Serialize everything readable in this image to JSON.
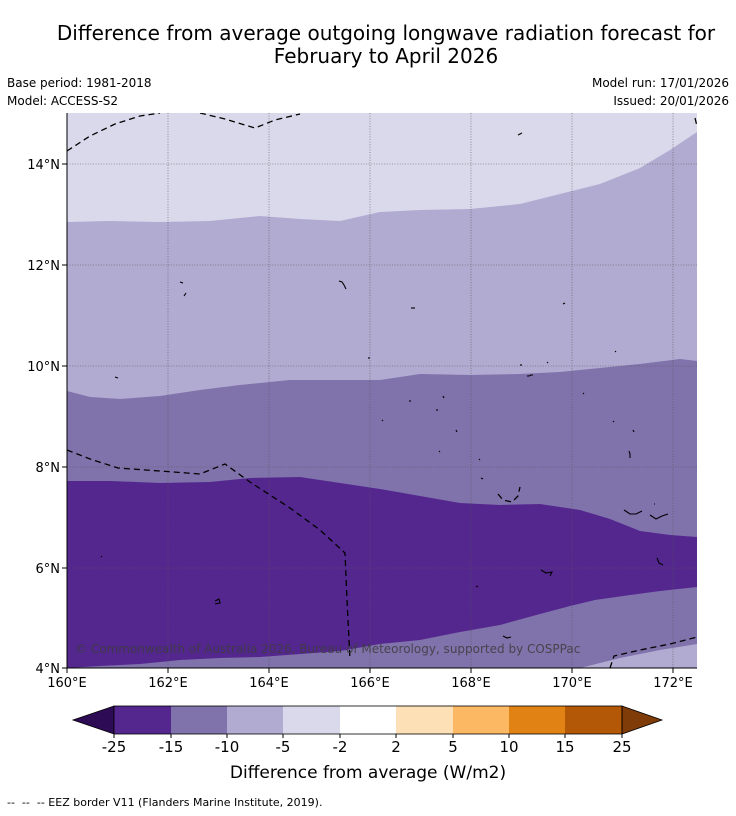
{
  "header": {
    "title_line1": "Difference from average outgoing longwave radiation forecast for",
    "title_line2": "February to April 2026",
    "base_period": "Base period: 1981-2018",
    "model": "Model: ACCESS-S2",
    "model_run": "Model run: 17/01/2026",
    "issued": "Issued: 20/01/2026"
  },
  "map": {
    "lon_labels": [
      "160°E",
      "162°E",
      "164°E",
      "166°E",
      "168°E",
      "170°E",
      "172°E"
    ],
    "lat_labels": [
      "14°N",
      "12°N",
      "10°N",
      "8°N",
      "6°N",
      "4°N"
    ],
    "copyright": "© Commonwealth of Australia 2026, Bureau of Meteorology, supported by COSPPac"
  },
  "legend": {
    "ticks": [
      "-25",
      "-15",
      "-10",
      "-5",
      "-2",
      "2",
      "5",
      "10",
      "15",
      "25"
    ],
    "colors": [
      "#2d0b55",
      "#54278f",
      "#8072ab",
      "#b1aad1",
      "#d9d9eb",
      "#ffffff",
      "#fee0b6",
      "#fdb863",
      "#e08214",
      "#b35806",
      "#7f3b08"
    ],
    "label": "Difference from average (W/m2)"
  },
  "footnote": "--  --  -- EEZ border V11 (Flanders Marine Institute, 2019)."
}
